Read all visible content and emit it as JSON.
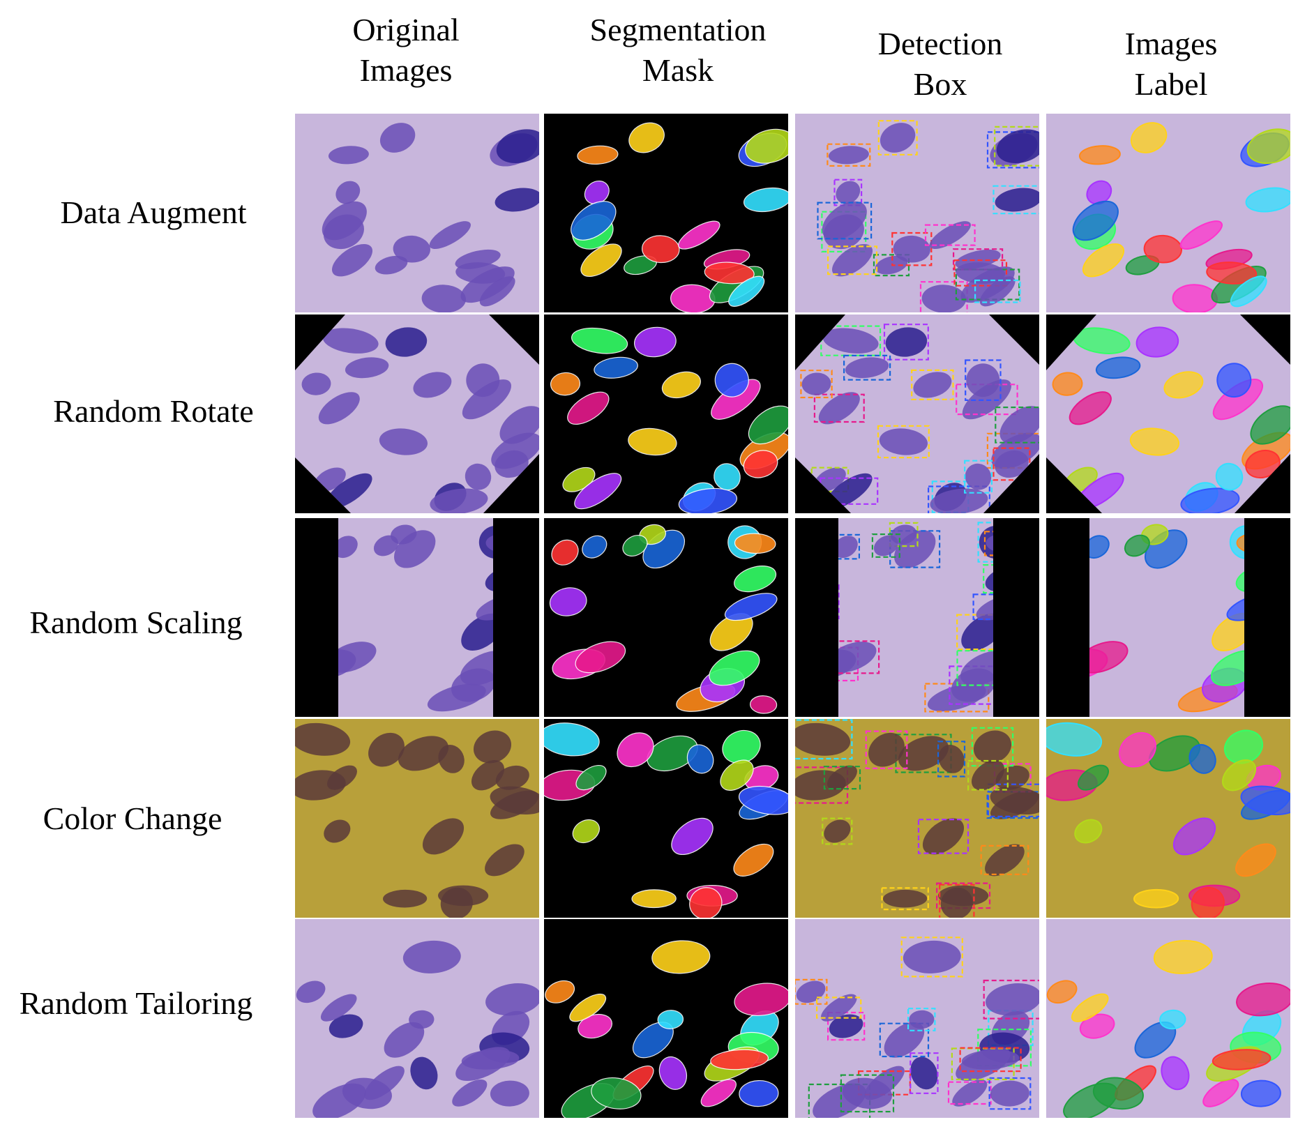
{
  "columns": [
    {
      "label": "Original\nImages",
      "kind": "original"
    },
    {
      "label": "Segmentation\nMask",
      "kind": "mask"
    },
    {
      "label": "Detection\nBox",
      "kind": "box"
    },
    {
      "label": "Images\nLabel",
      "kind": "label"
    }
  ],
  "rows": [
    {
      "label": "Data Augment",
      "variant": "augment"
    },
    {
      "label": "Random Rotate",
      "variant": "rotate"
    },
    {
      "label": "Random Scaling",
      "variant": "scale"
    },
    {
      "label": "Color Change",
      "variant": "color"
    },
    {
      "label": "Random Tailoring",
      "variant": "tailor"
    }
  ],
  "colors": {
    "tissue_background": "#c8b6dc",
    "nucleus": "#6a4fb6",
    "nucleus_dark": "#2a1f8e",
    "yellow_background": "#b8a03a",
    "yellow_nucleus": "#5a3a3a",
    "mask_background": "#000000",
    "instance_palette": [
      "#ff33cc",
      "#1f9e3f",
      "#ff3333",
      "#33e0ff",
      "#ffd21a",
      "#3355ff",
      "#ff8a1a",
      "#a833ff",
      "#33ff66",
      "#e61a8c",
      "#1a66d9",
      "#b3d91a"
    ]
  }
}
